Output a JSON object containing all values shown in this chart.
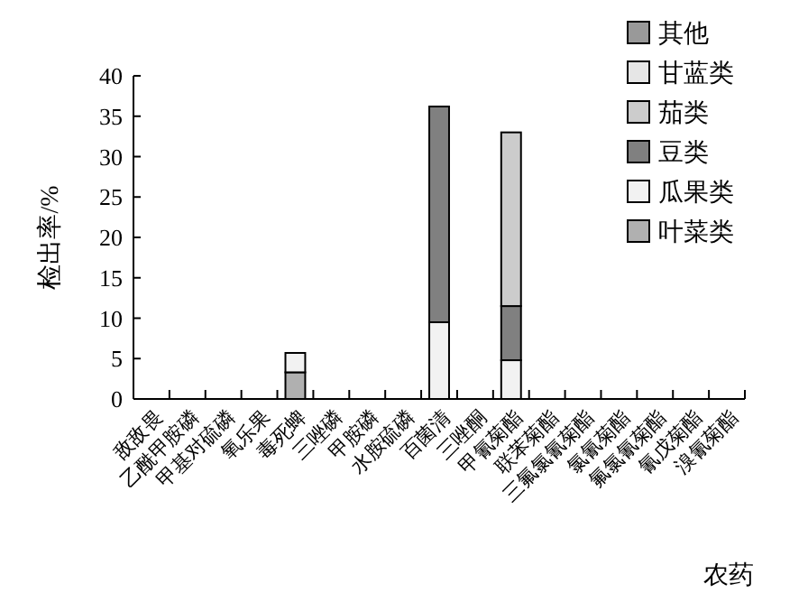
{
  "chart_data": {
    "type": "bar",
    "stacked": true,
    "xlabel": "农药",
    "ylabel": "检出率/%",
    "categories": [
      "敌敌畏",
      "乙酰甲胺磷",
      "甲基对硫磷",
      "氧乐果",
      "毒死蜱",
      "三唑磷",
      "甲胺磷",
      "水胺硫磷",
      "百菌清",
      "三唑酮",
      "甲氰菊酯",
      "联苯菊酯",
      "三氟氯氰菊酯",
      "氯氰菊酯",
      "氟氯氰菊酯",
      "氰戊菊酯",
      "溴氰菊酯"
    ],
    "series": [
      {
        "name": "叶菜类",
        "color": "#b0b0b0",
        "values": [
          0,
          0,
          0,
          0,
          3.3,
          0,
          0,
          0,
          0,
          0,
          0,
          0,
          0,
          0,
          0,
          0,
          0
        ]
      },
      {
        "name": "瓜果类",
        "color": "#f2f2f2",
        "values": [
          0,
          0,
          0,
          0,
          2.4,
          0,
          0,
          0,
          9.5,
          0,
          4.8,
          0,
          0,
          0,
          0,
          0,
          0
        ]
      },
      {
        "name": "豆类",
        "color": "#808080",
        "values": [
          0,
          0,
          0,
          0,
          0,
          0,
          0,
          0,
          26.7,
          0,
          6.7,
          0,
          0,
          0,
          0,
          0,
          0
        ]
      },
      {
        "name": "茄类",
        "color": "#cccccc",
        "values": [
          0,
          0,
          0,
          0,
          0,
          0,
          0,
          0,
          0,
          0,
          21.5,
          0,
          0,
          0,
          0,
          0,
          0
        ]
      },
      {
        "name": "甘蓝类",
        "color": "#e6e6e6",
        "values": [
          0,
          0,
          0,
          0,
          0,
          0,
          0,
          0,
          0,
          0,
          0,
          0,
          0,
          0,
          0,
          0,
          0
        ]
      },
      {
        "name": "其他",
        "color": "#999999",
        "values": [
          0,
          0,
          0,
          0,
          0,
          0,
          0,
          0,
          0,
          0,
          0,
          0,
          0,
          0,
          0,
          0,
          0
        ]
      }
    ],
    "ylim": [
      0,
      40
    ],
    "yticks": [
      0,
      5,
      10,
      15,
      20,
      25,
      30,
      35,
      40
    ],
    "grid": false,
    "legend": "top right"
  }
}
